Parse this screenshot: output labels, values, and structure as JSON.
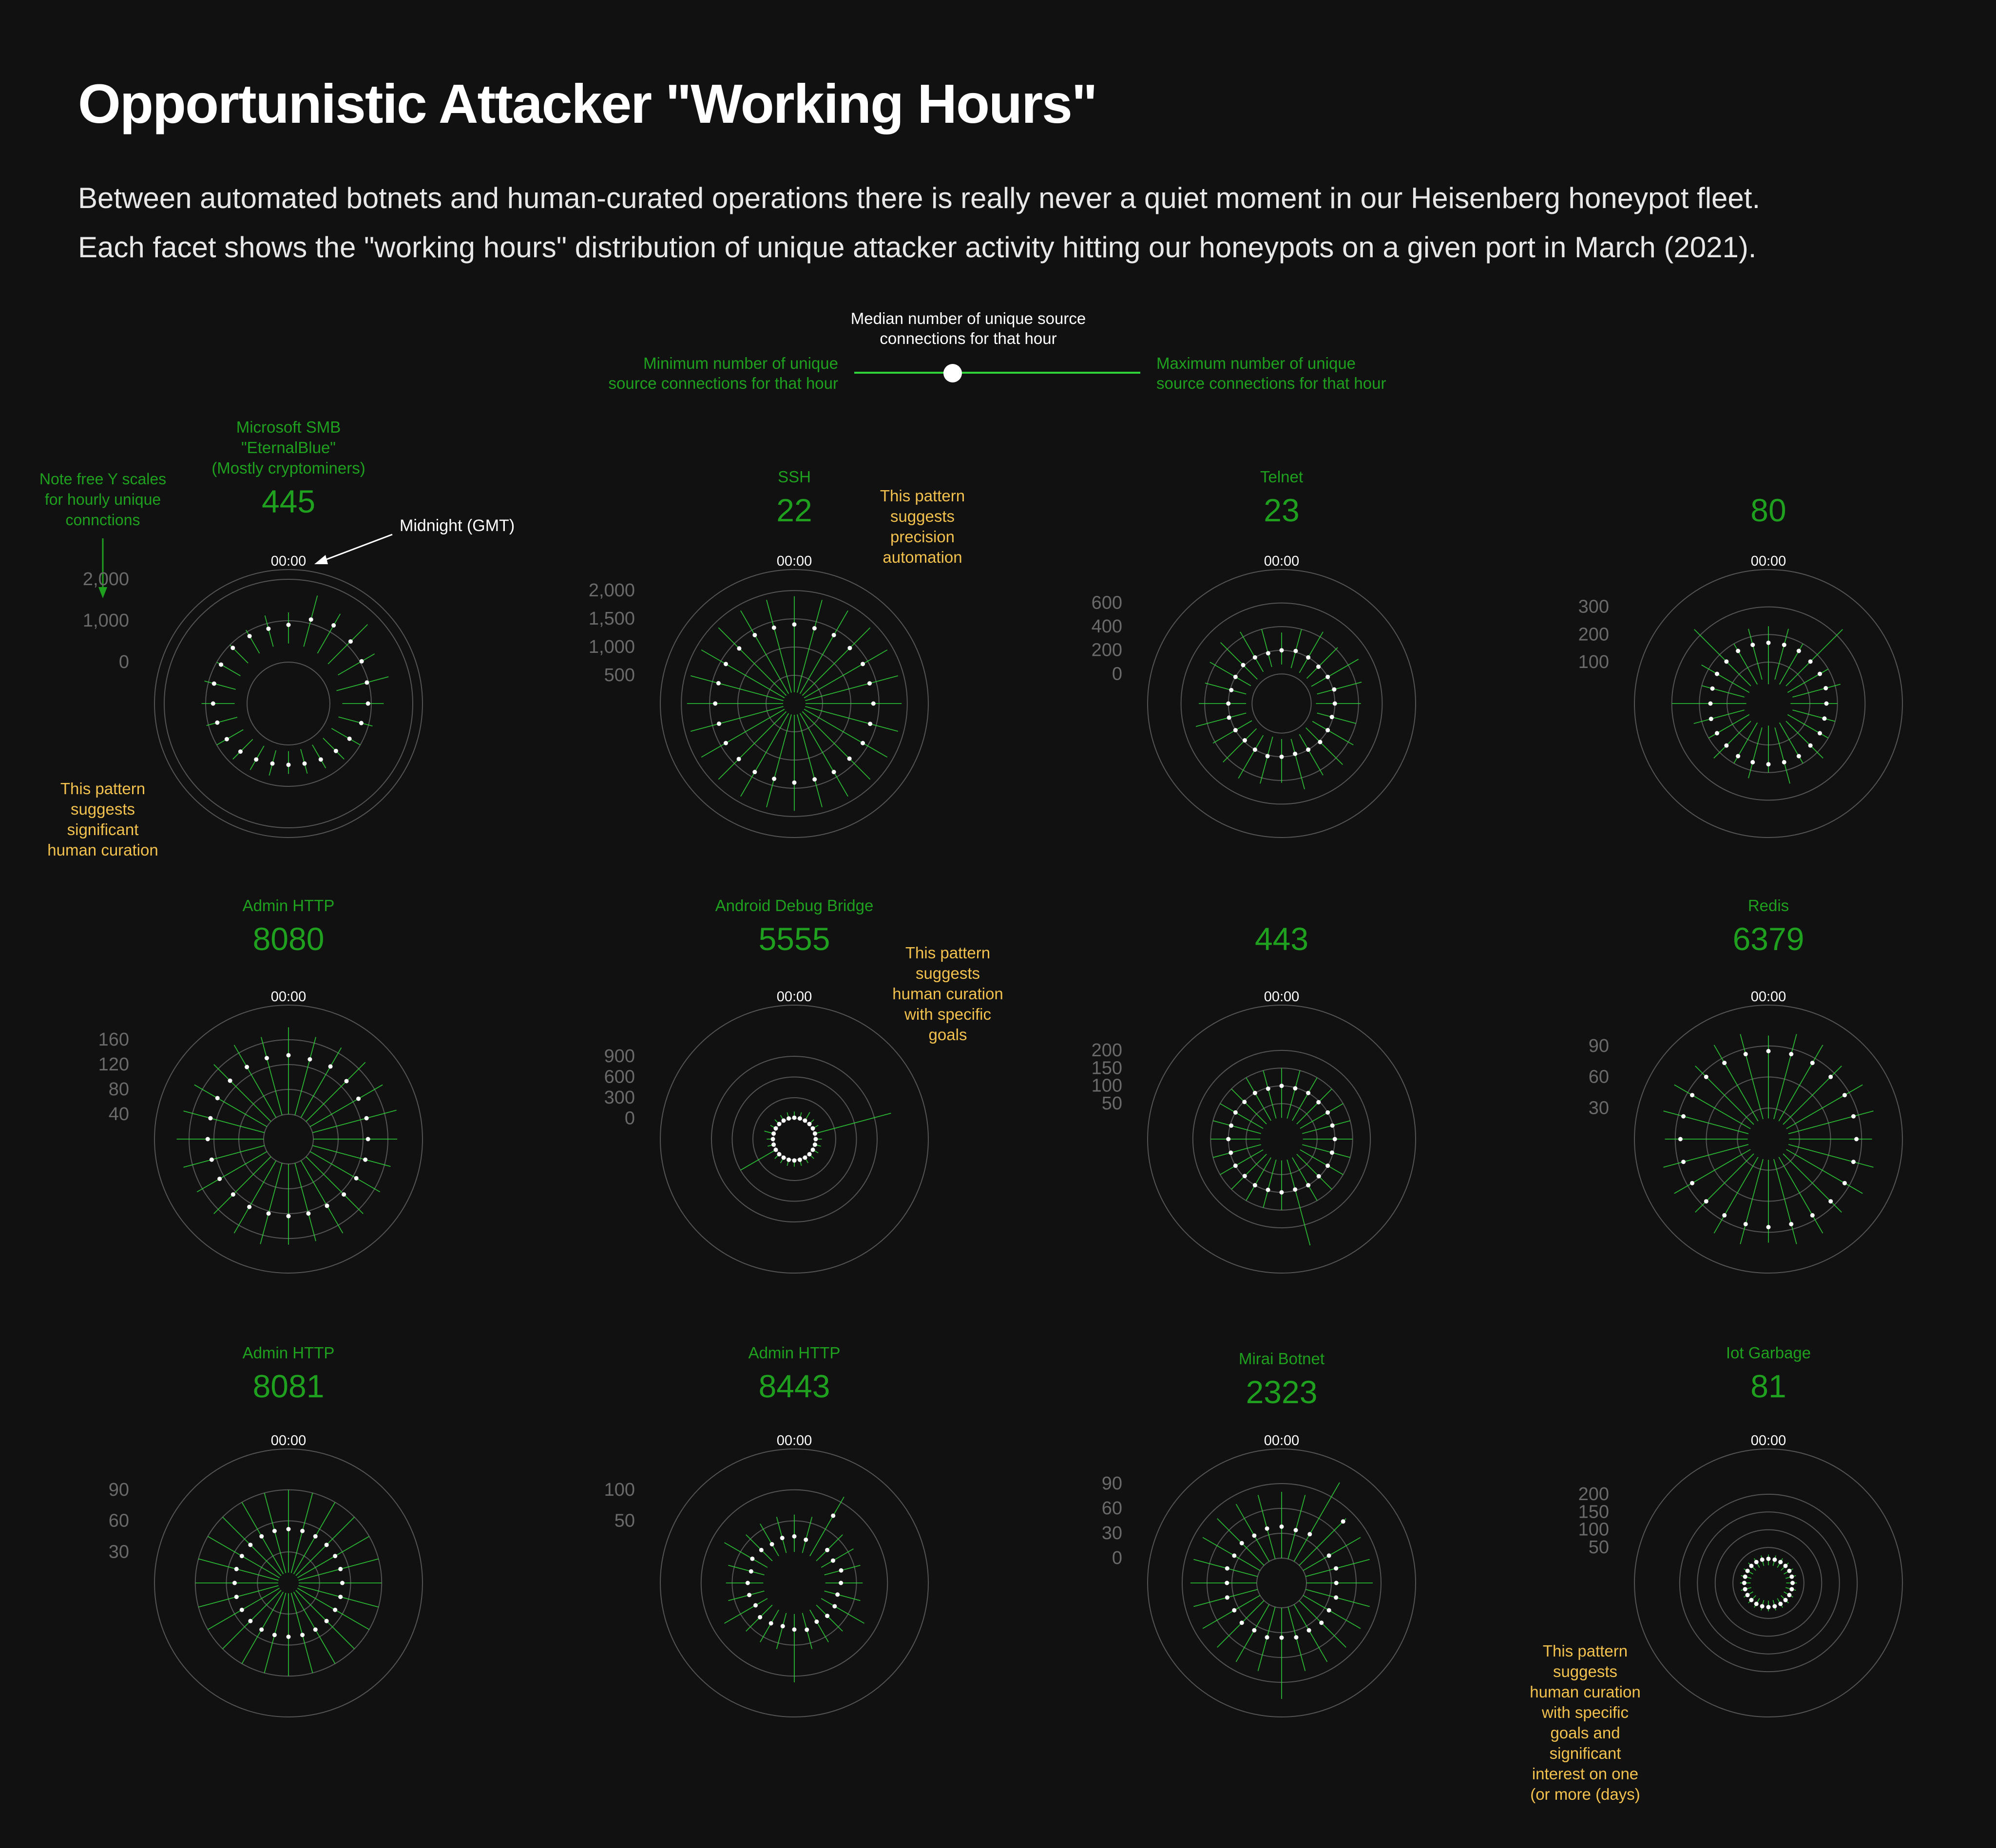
{
  "title": "Opportunistic Attacker \"Working Hours\"",
  "subtitle_lines": [
    "Between automated botnets and human-curated operations there is really never a quiet moment in our Heisenberg honeypot fleet.",
    "Each facet shows the \"working hours\" distribution of unique attacker activity hitting our honeypots on a given port in March (2021)."
  ],
  "legend": {
    "median": [
      "Median number of unique source",
      "connections for that hour"
    ],
    "min": [
      "Minimum number of unique",
      "source connections for that hour"
    ],
    "max": [
      "Maximum number of unique",
      "source connections for that hour"
    ]
  },
  "notes": {
    "free_scales": [
      "Note free Y scales",
      "for hourly unique",
      "connctions"
    ],
    "midnight": "Midnight (GMT)",
    "midnight_label": "00:00"
  },
  "colors": {
    "background": "#111111",
    "accent_green": "#1fa01f",
    "line_green": "#2fd33a",
    "annotation": "#f2c14e",
    "grid": "#555555",
    "tick": "#6a6a6a"
  },
  "chart_data": [
    {
      "type": "radial",
      "port": "445",
      "service": [
        "Microsoft SMB",
        "\"EternalBlue\"",
        "(Mostly cryptominers)"
      ],
      "x": "hour (GMT)",
      "ticks": [
        "2,000",
        "1,000",
        "0"
      ],
      "ylim": [
        -1000,
        2000
      ],
      "median": [
        900,
        1100,
        1180,
        1120,
        1040,
        960,
        920,
        820,
        700,
        620,
        560,
        500,
        480,
        500,
        560,
        640,
        720,
        780,
        820,
        860,
        880,
        900,
        880,
        870
      ],
      "min": [
        450,
        420,
        400,
        350,
        380,
        200,
        300,
        250,
        200,
        180,
        150,
        140,
        150,
        170,
        180,
        220,
        260,
        280,
        300,
        320,
        340,
        380,
        400,
        420
      ],
      "max": [
        1200,
        1700,
        1500,
        1700,
        1400,
        1500,
        1300,
        1100,
        1000,
        900,
        800,
        750,
        700,
        800,
        850,
        900,
        1000,
        1050,
        1100,
        1100,
        1000,
        1000,
        1050,
        1200
      ],
      "annotation": [
        "This pattern",
        "suggests",
        "significant",
        "human curation"
      ]
    },
    {
      "type": "radial",
      "port": "22",
      "service": [
        "SSH"
      ],
      "ticks": [
        "2,000",
        "1,500",
        "1,000",
        "500"
      ],
      "ylim": [
        0,
        2200
      ],
      "median": [
        1400,
        1380,
        1400,
        1390,
        1400,
        1380,
        1400,
        1390,
        1400,
        1380,
        1400,
        1390,
        1400,
        1380,
        1400,
        1390,
        1400,
        1380,
        1400,
        1390,
        1400,
        1380,
        1400,
        1390
      ],
      "min": [
        200,
        200,
        200,
        200,
        200,
        200,
        200,
        200,
        200,
        200,
        200,
        200,
        200,
        200,
        200,
        200,
        200,
        200,
        200,
        200,
        200,
        200,
        200,
        200
      ],
      "max": [
        1900,
        1900,
        1900,
        1900,
        1900,
        1900,
        1900,
        1900,
        1900,
        1900,
        1900,
        1900,
        1900,
        1900,
        1900,
        1900,
        1900,
        1900,
        1900,
        1900,
        1900,
        1900,
        1900,
        1900
      ],
      "annotation": [
        "This pattern",
        "suggests",
        "precision",
        "automation"
      ]
    },
    {
      "type": "radial",
      "port": "23",
      "service": [
        "Telnet"
      ],
      "ticks": [
        "600",
        "400",
        "200",
        "0"
      ],
      "ylim": [
        -250,
        800
      ],
      "median": [
        200,
        210,
        200,
        190,
        200,
        210,
        200,
        190,
        200,
        210,
        200,
        190,
        200,
        210,
        200,
        190,
        200,
        210,
        200,
        190,
        200,
        210,
        200,
        190
      ],
      "min": [
        80,
        60,
        50,
        50,
        40,
        60,
        40,
        60,
        50,
        40,
        50,
        60,
        50,
        40,
        60,
        50,
        40,
        60,
        50,
        60,
        50,
        40,
        60,
        70
      ],
      "max": [
        350,
        400,
        450,
        420,
        500,
        450,
        420,
        400,
        450,
        480,
        450,
        500,
        420,
        450,
        480,
        450,
        420,
        500,
        450,
        420,
        450,
        480,
        450,
        400
      ]
    },
    {
      "type": "radial",
      "port": "80",
      "service": [
        ""
      ],
      "ticks": [
        "300",
        "200",
        "100"
      ],
      "ylim": [
        -50,
        400
      ],
      "median": [
        170,
        170,
        170,
        165,
        165,
        165,
        160,
        160,
        165,
        165,
        170,
        170,
        170,
        170,
        170,
        165,
        165,
        165,
        160,
        160,
        165,
        165,
        170,
        170
      ],
      "min": [
        20,
        40,
        30,
        40,
        30,
        40,
        30,
        40,
        30,
        40,
        30,
        40,
        30,
        40,
        30,
        40,
        30,
        40,
        30,
        40,
        30,
        40,
        30,
        40
      ],
      "max": [
        230,
        230,
        200,
        330,
        200,
        220,
        200,
        200,
        200,
        230,
        200,
        250,
        200,
        230,
        200,
        230,
        200,
        230,
        300,
        200,
        230,
        330,
        200,
        230
      ]
    },
    {
      "type": "radial",
      "port": "8080",
      "service": [
        "Admin HTTP"
      ],
      "ticks": [
        "160",
        "120",
        "80",
        "40"
      ],
      "ylim": [
        0,
        200
      ],
      "median": [
        135,
        133,
        135,
        132,
        130,
        130,
        128,
        128,
        126,
        126,
        124,
        124,
        124,
        124,
        126,
        126,
        128,
        128,
        130,
        130,
        132,
        133,
        134,
        135
      ],
      "min": [
        40,
        40,
        40,
        40,
        40,
        40,
        40,
        40,
        40,
        40,
        40,
        40,
        40,
        40,
        40,
        40,
        40,
        40,
        40,
        40,
        40,
        40,
        40,
        40
      ],
      "max": [
        180,
        170,
        170,
        175,
        175,
        180,
        175,
        170,
        170,
        170,
        175,
        170,
        170,
        175,
        175,
        170,
        170,
        175,
        180,
        175,
        175,
        170,
        175,
        170
      ]
    },
    {
      "type": "radial",
      "port": "5555",
      "service": [
        "Android Debug Bridge"
      ],
      "ticks": [
        "900",
        "600",
        "300",
        "0"
      ],
      "ylim": [
        -300,
        1500
      ],
      "median": [
        10,
        10,
        10,
        10,
        10,
        10,
        10,
        10,
        10,
        10,
        10,
        10,
        10,
        10,
        10,
        10,
        10,
        10,
        10,
        10,
        10,
        10,
        10,
        10
      ],
      "min": [
        0,
        0,
        0,
        0,
        0,
        0,
        0,
        0,
        0,
        0,
        0,
        0,
        0,
        0,
        0,
        0,
        0,
        0,
        0,
        0,
        0,
        0,
        0,
        0
      ],
      "max": [
        100,
        100,
        150,
        100,
        100,
        1150,
        100,
        100,
        100,
        100,
        100,
        100,
        100,
        100,
        100,
        100,
        600,
        100,
        100,
        150,
        100,
        100,
        100,
        100
      ],
      "annotation": [
        "This pattern",
        "suggests",
        "human curation",
        "with specific",
        "goals"
      ]
    },
    {
      "type": "radial",
      "port": "443",
      "service": [
        ""
      ],
      "ticks": [
        "200",
        "150",
        "100",
        "50"
      ],
      "ylim": [
        -50,
        300
      ],
      "median": [
        100,
        98,
        100,
        97,
        100,
        98,
        100,
        97,
        100,
        98,
        100,
        97,
        100,
        98,
        100,
        97,
        100,
        98,
        100,
        97,
        100,
        98,
        100,
        97
      ],
      "min": [
        10,
        10,
        10,
        10,
        10,
        10,
        10,
        10,
        10,
        10,
        10,
        10,
        10,
        10,
        10,
        10,
        10,
        10,
        10,
        10,
        10,
        10,
        10,
        10
      ],
      "max": [
        150,
        150,
        150,
        150,
        150,
        150,
        150,
        150,
        150,
        150,
        150,
        260,
        150,
        150,
        150,
        150,
        150,
        150,
        150,
        150,
        150,
        150,
        150,
        150
      ]
    },
    {
      "type": "radial",
      "port": "6379",
      "service": [
        "Redis"
      ],
      "ticks": [
        "90",
        "60",
        "30"
      ],
      "ylim": [
        0,
        120
      ],
      "median": [
        85,
        85,
        85,
        85,
        85,
        85,
        85,
        85,
        85,
        85,
        85,
        85,
        85,
        85,
        85,
        85,
        85,
        85,
        85,
        85,
        85,
        85,
        85,
        85
      ],
      "min": [
        20,
        20,
        20,
        20,
        20,
        20,
        20,
        20,
        20,
        20,
        20,
        20,
        20,
        20,
        20,
        20,
        20,
        20,
        20,
        20,
        20,
        20,
        20,
        20
      ],
      "max": [
        100,
        105,
        105,
        100,
        105,
        105,
        100,
        105,
        105,
        100,
        105,
        105,
        100,
        105,
        105,
        100,
        105,
        105,
        100,
        105,
        105,
        100,
        105,
        105
      ]
    },
    {
      "type": "radial",
      "port": "8081",
      "service": [
        "Admin HTTP"
      ],
      "ticks": [
        "90",
        "60",
        "30"
      ],
      "ylim": [
        0,
        120
      ],
      "median": [
        52,
        52,
        52,
        52,
        52,
        52,
        52,
        52,
        52,
        52,
        52,
        52,
        52,
        52,
        52,
        52,
        52,
        52,
        52,
        52,
        52,
        52,
        52,
        52
      ],
      "min": [
        10,
        10,
        10,
        10,
        10,
        10,
        10,
        10,
        10,
        10,
        10,
        10,
        10,
        10,
        10,
        10,
        10,
        10,
        10,
        10,
        10,
        10,
        10,
        10
      ],
      "max": [
        90,
        90,
        90,
        90,
        90,
        90,
        90,
        90,
        90,
        90,
        90,
        90,
        90,
        90,
        90,
        90,
        90,
        90,
        90,
        90,
        90,
        90,
        90,
        90
      ]
    },
    {
      "type": "radial",
      "port": "8443",
      "service": [
        "Admin HTTP"
      ],
      "ticks": [
        "100",
        "50"
      ],
      "ylim": [
        -50,
        150
      ],
      "median": [
        25,
        22,
        75,
        25,
        22,
        28,
        25,
        22,
        25,
        25,
        22,
        28,
        25,
        22,
        25,
        28,
        22,
        25,
        25,
        22,
        28,
        25,
        22,
        25
      ],
      "min": [
        0,
        0,
        0,
        0,
        0,
        0,
        0,
        0,
        0,
        0,
        0,
        0,
        0,
        0,
        0,
        0,
        0,
        0,
        0,
        0,
        0,
        0,
        0,
        0
      ],
      "max": [
        60,
        60,
        110,
        60,
        60,
        60,
        60,
        60,
        80,
        60,
        60,
        60,
        110,
        60,
        60,
        60,
        80,
        60,
        60,
        60,
        80,
        60,
        60,
        60
      ]
    },
    {
      "type": "radial",
      "port": "2323",
      "service": [
        "Mirai Botnet"
      ],
      "ticks": [
        "90",
        "60",
        "30",
        "0"
      ],
      "ylim": [
        -30,
        120
      ],
      "median": [
        38,
        36,
        38,
        75,
        36,
        38,
        36,
        38,
        36,
        38,
        36,
        38,
        36,
        38,
        36,
        38,
        36,
        38,
        36,
        38,
        36,
        38,
        36,
        38
      ],
      "min": [
        0,
        0,
        0,
        0,
        0,
        0,
        0,
        0,
        0,
        0,
        0,
        0,
        0,
        0,
        0,
        0,
        0,
        0,
        0,
        0,
        0,
        0,
        0,
        0
      ],
      "max": [
        80,
        80,
        110,
        80,
        80,
        80,
        80,
        80,
        80,
        80,
        80,
        80,
        110,
        80,
        80,
        80,
        80,
        80,
        80,
        80,
        80,
        80,
        80,
        80
      ]
    },
    {
      "type": "radial",
      "port": "81",
      "service": [
        "Iot Garbage"
      ],
      "ticks": [
        "200",
        "150",
        "100",
        "50"
      ],
      "ylim": [
        -50,
        300
      ],
      "median": [
        18,
        18,
        18,
        18,
        18,
        18,
        18,
        18,
        18,
        18,
        18,
        18,
        18,
        18,
        18,
        18,
        18,
        18,
        18,
        18,
        18,
        18,
        18,
        18
      ],
      "min": [
        0,
        0,
        0,
        0,
        0,
        0,
        0,
        0,
        0,
        0,
        0,
        0,
        0,
        0,
        0,
        0,
        0,
        0,
        0,
        0,
        0,
        0,
        0,
        0
      ],
      "max": [
        30,
        30,
        30,
        30,
        30,
        30,
        30,
        30,
        30,
        30,
        30,
        30,
        30,
        30,
        30,
        30,
        30,
        30,
        30,
        30,
        30,
        30,
        30,
        30
      ],
      "annotation": [
        "This pattern",
        "suggests",
        "human curation",
        "with specific",
        "goals and",
        "significant",
        "interest on one",
        "(or more (days)"
      ]
    }
  ]
}
